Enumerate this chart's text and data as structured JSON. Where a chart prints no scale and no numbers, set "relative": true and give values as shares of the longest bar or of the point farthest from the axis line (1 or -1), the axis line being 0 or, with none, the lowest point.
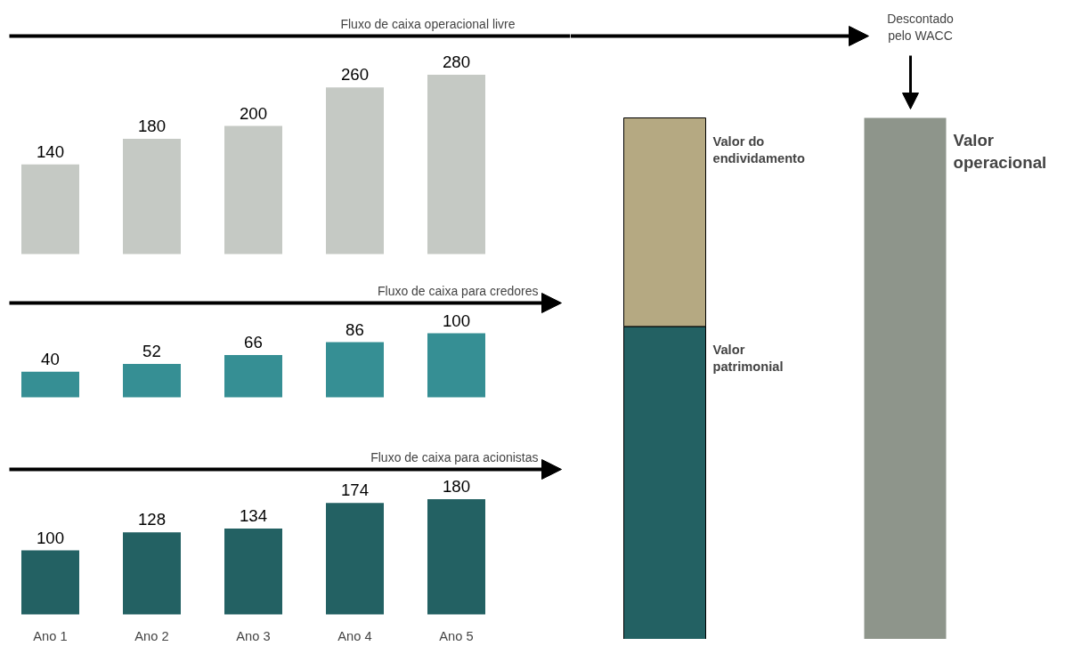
{
  "chart_data": [
    {
      "type": "bar",
      "title": "Fluxo de caixa operacional livre",
      "categories": [
        null,
        null,
        null,
        null,
        null
      ],
      "values": [
        140,
        180,
        200,
        260,
        280
      ],
      "color": "#c5c9c4",
      "data_labels": true,
      "tick_labels": false
    },
    {
      "type": "bar",
      "title": "Fluxo de caixa para credores",
      "categories": [
        null,
        null,
        null,
        null,
        null
      ],
      "values": [
        40,
        52,
        66,
        86,
        100
      ],
      "color": "#368f94",
      "data_labels": true,
      "tick_labels": false
    },
    {
      "type": "bar",
      "title": "Fluxo de caixa para acionistas",
      "categories": [
        "Ano 1",
        "Ano 2",
        "Ano 3",
        "Ano 4",
        "Ano 5"
      ],
      "values": [
        100,
        128,
        134,
        174,
        180
      ],
      "color": "#236163",
      "data_labels": true,
      "tick_labels": "x"
    },
    {
      "type": "bar",
      "stacked": true,
      "relative": true,
      "categories": [
        null,
        null
      ],
      "series": [
        {
          "name": "Valor patrimonial",
          "color": "#236163",
          "values": [
            0.6,
            null
          ]
        },
        {
          "name": "Valor do endividamento",
          "color": "#b5a982",
          "values": [
            0.4,
            null
          ]
        },
        {
          "name": "Valor operacional",
          "color": "#8e958b",
          "values": [
            null,
            1
          ]
        }
      ],
      "annotations": [
        "Descontado pelo WACC"
      ]
    }
  ]
}
